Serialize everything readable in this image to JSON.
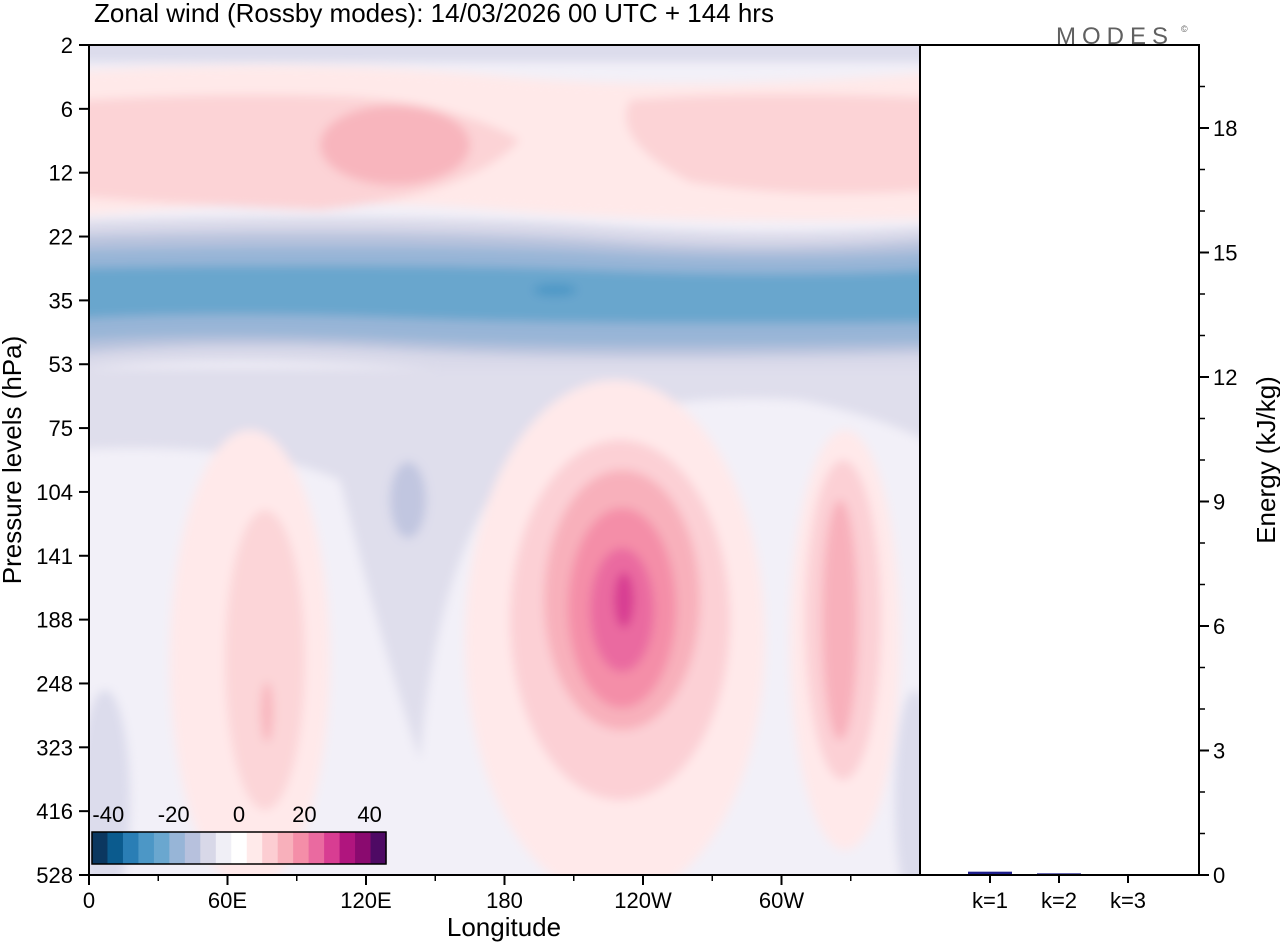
{
  "chart_data": {
    "type": "heatmap",
    "title": "Zonal wind (Rossby modes):  14/03/2026  00 UTC  + 144 hrs",
    "brand": "MODES",
    "brand_mark": "©",
    "xlabel": "Longitude",
    "ylabel": "Pressure levels (hPa)",
    "x_ticks": [
      "0",
      "60E",
      "120E",
      "180",
      "120W",
      "60W"
    ],
    "x_tick_values": [
      0,
      60,
      120,
      180,
      240,
      300
    ],
    "xlim": [
      0,
      360
    ],
    "y_ticks": [
      "2",
      "6",
      "12",
      "22",
      "35",
      "53",
      "75",
      "104",
      "141",
      "188",
      "248",
      "323",
      "416",
      "528"
    ],
    "colorbar": {
      "tick_labels": [
        "-40",
        "-20",
        "0",
        "20",
        "40"
      ],
      "tick_values": [
        -40,
        -20,
        0,
        20,
        40
      ],
      "levels": [
        -45,
        -40,
        -35,
        -30,
        -25,
        -20,
        -15,
        -10,
        -5,
        0,
        5,
        10,
        15,
        20,
        25,
        30,
        35,
        40,
        45
      ],
      "colors": [
        "#0b3760",
        "#0b5b8e",
        "#2a7eb5",
        "#4c97c6",
        "#6aa7cf",
        "#97b5d7",
        "#b7c1dd",
        "#d8d8e8",
        "#f0eff6",
        "#ffffff",
        "#ffeaea",
        "#fccdd2",
        "#f8b0bb",
        "#f48ea8",
        "#ea6aa0",
        "#d83d92",
        "#b0157e",
        "#8a0a6f",
        "#4e0a64"
      ]
    },
    "field_features": [
      {
        "label": "upper positive band",
        "x_range": [
          0,
          360
        ],
        "level_range": [
          6,
          12
        ],
        "max_value": 10
      },
      {
        "label": "negative jet band",
        "x_range": [
          0,
          360
        ],
        "level_range": [
          22,
          53
        ],
        "min_value": -30
      },
      {
        "label": "east-Pacific positive maximum",
        "x_center": 232,
        "level_center": 188,
        "max_value": 28
      },
      {
        "label": "Atlantic positive maximum",
        "x_center": 325,
        "level_center": 188,
        "max_value": 12
      },
      {
        "label": "Indian Ocean positive maximum",
        "x_center": 75,
        "level_center": 248,
        "max_value": 12
      }
    ],
    "energy_panel": {
      "ylabel": "Energy (kJ/kg)",
      "y_ticks": [
        "0",
        "3",
        "6",
        "9",
        "12",
        "15",
        "18"
      ],
      "y_tick_values": [
        0,
        3,
        6,
        9,
        12,
        15,
        18
      ],
      "ylim": [
        0,
        20
      ],
      "categories": [
        "k=1",
        "k=2",
        "k=3"
      ],
      "values": [
        0.08,
        0.04,
        0.02
      ],
      "bar_color": "#1e1e8c"
    }
  }
}
